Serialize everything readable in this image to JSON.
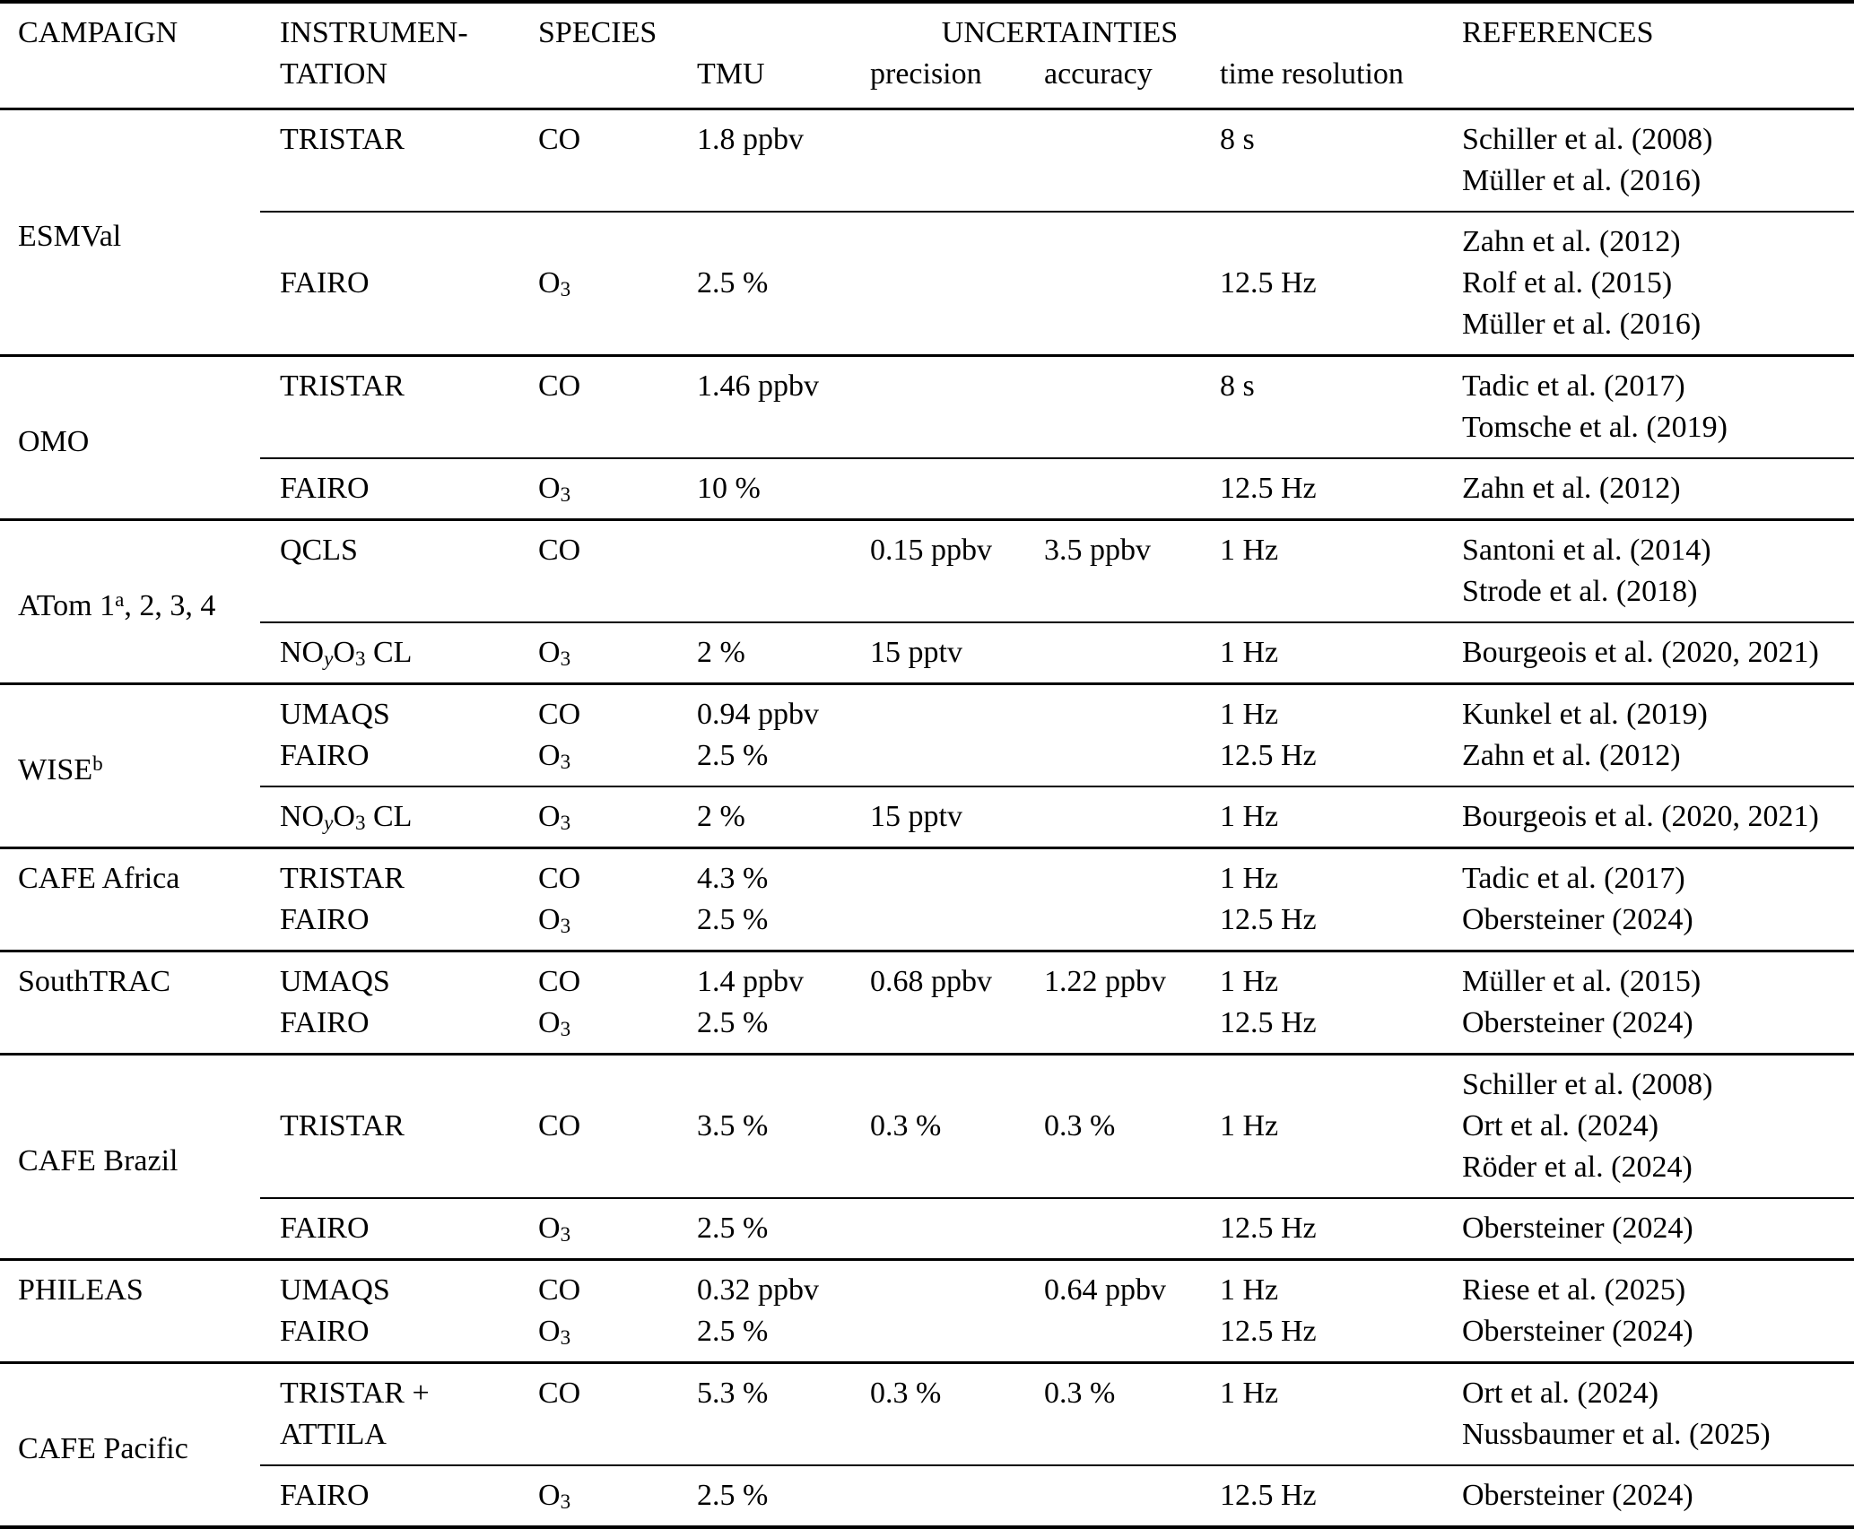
{
  "table": {
    "header": {
      "campaign": "CAMPAIGN",
      "instrumentation_line1": "INSTRUMEN-",
      "instrumentation_line2": "TATION",
      "species": "SPECIES",
      "uncertainties": "UNCERTAINTIES",
      "tmu": "TMU",
      "precision": "precision",
      "accuracy": "accuracy",
      "time_resolution": "time resolution",
      "references": "REFERENCES"
    },
    "groups": [
      {
        "campaign": "ESMVal",
        "rows": [
          [
            {
              "instrument": "TRISTAR",
              "species": "CO",
              "tmu": "1.8 ppbv",
              "time_resolution": "8 s",
              "reference": "Schiller et al. (2008)"
            },
            {
              "reference": "Müller et al. (2016)"
            }
          ],
          [
            {
              "reference": "Zahn et al. (2012)"
            },
            {
              "instrument": "FAIRO",
              "species": [
                {
                  "t": "O"
                },
                {
                  "sub": "3"
                }
              ],
              "tmu": "2.5 %",
              "time_resolution": "12.5 Hz",
              "reference": "Rolf et al. (2015)"
            },
            {
              "reference": "Müller et al. (2016)"
            }
          ]
        ]
      },
      {
        "campaign": "OMO",
        "rows": [
          [
            {
              "instrument": "TRISTAR",
              "species": "CO",
              "tmu": "1.46 ppbv",
              "time_resolution": "8 s",
              "reference": "Tadic et al. (2017)"
            },
            {
              "reference": "Tomsche et al. (2019)"
            }
          ],
          [
            {
              "instrument": "FAIRO",
              "species": [
                {
                  "t": "O"
                },
                {
                  "sub": "3"
                }
              ],
              "tmu": "10 %",
              "time_resolution": "12.5 Hz",
              "reference": "Zahn et al. (2012)"
            }
          ]
        ]
      },
      {
        "campaign": [
          {
            "t": "ATom 1"
          },
          {
            "sup": "a"
          },
          {
            "t": ", 2, 3, 4"
          }
        ],
        "rows": [
          [
            {
              "instrument": "QCLS",
              "species": "CO",
              "precision": "0.15 ppbv",
              "accuracy": "3.5 ppbv",
              "time_resolution": "1 Hz",
              "reference": "Santoni et al. (2014)"
            },
            {
              "reference": "Strode et al. (2018)"
            }
          ],
          [
            {
              "instrument": [
                {
                  "t": "NO"
                },
                {
                  "isub": "y"
                },
                {
                  "t": "O"
                },
                {
                  "sub": "3"
                },
                {
                  "t": " CL"
                }
              ],
              "species": [
                {
                  "t": "O"
                },
                {
                  "sub": "3"
                }
              ],
              "tmu": "2 %",
              "precision": "15 pptv",
              "time_resolution": "1 Hz",
              "reference": "Bourgeois et al. (2020, 2021)"
            }
          ]
        ]
      },
      {
        "campaign": [
          {
            "t": "WISE"
          },
          {
            "sup": "b"
          }
        ],
        "rows": [
          [
            {
              "instrument": "UMAQS",
              "species": "CO",
              "tmu": "0.94 ppbv",
              "time_resolution": "1 Hz",
              "reference": "Kunkel et al. (2019)"
            },
            {
              "instrument": "FAIRO",
              "species": [
                {
                  "t": "O"
                },
                {
                  "sub": "3"
                }
              ],
              "tmu": "2.5 %",
              "time_resolution": "12.5 Hz",
              "reference": "Zahn et al. (2012)"
            }
          ],
          [
            {
              "instrument": [
                {
                  "t": "NO"
                },
                {
                  "isub": "y"
                },
                {
                  "t": "O"
                },
                {
                  "sub": "3"
                },
                {
                  "t": " CL"
                }
              ],
              "species": [
                {
                  "t": "O"
                },
                {
                  "sub": "3"
                }
              ],
              "tmu": "2 %",
              "precision": "15 pptv",
              "time_resolution": "1 Hz",
              "reference": "Bourgeois et al. (2020, 2021)"
            }
          ]
        ]
      },
      {
        "campaign": "CAFE Africa",
        "rows": [
          [
            {
              "instrument": "TRISTAR",
              "species": "CO",
              "tmu": "4.3 %",
              "time_resolution": "1 Hz",
              "reference": "Tadic et al. (2017)"
            },
            {
              "instrument": "FAIRO",
              "species": [
                {
                  "t": "O"
                },
                {
                  "sub": "3"
                }
              ],
              "tmu": "2.5 %",
              "time_resolution": "12.5 Hz",
              "reference": "Obersteiner (2024)"
            }
          ]
        ]
      },
      {
        "campaign": "SouthTRAC",
        "rows": [
          [
            {
              "instrument": "UMAQS",
              "species": "CO",
              "tmu": "1.4 ppbv",
              "precision": "0.68 ppbv",
              "accuracy": "1.22 ppbv",
              "time_resolution": "1 Hz",
              "reference": "Müller et al. (2015)"
            },
            {
              "instrument": "FAIRO",
              "species": [
                {
                  "t": "O"
                },
                {
                  "sub": "3"
                }
              ],
              "tmu": "2.5 %",
              "time_resolution": "12.5 Hz",
              "reference": "Obersteiner (2024)"
            }
          ]
        ]
      },
      {
        "campaign": "CAFE Brazil",
        "rows": [
          [
            {
              "reference": "Schiller et al. (2008)"
            },
            {
              "instrument": "TRISTAR",
              "species": "CO",
              "tmu": "3.5 %",
              "precision": "0.3 %",
              "accuracy": "0.3 %",
              "time_resolution": "1 Hz",
              "reference": "Ort et al. (2024)"
            },
            {
              "reference": "Röder et al. (2024)"
            }
          ],
          [
            {
              "instrument": "FAIRO",
              "species": [
                {
                  "t": "O"
                },
                {
                  "sub": "3"
                }
              ],
              "tmu": "2.5 %",
              "time_resolution": "12.5 Hz",
              "reference": "Obersteiner (2024)"
            }
          ]
        ]
      },
      {
        "campaign": "PHILEAS",
        "rows": [
          [
            {
              "instrument": "UMAQS",
              "species": "CO",
              "tmu": "0.32 ppbv",
              "accuracy": "0.64 ppbv",
              "time_resolution": "1 Hz",
              "reference": "Riese et al. (2025)"
            },
            {
              "instrument": "FAIRO",
              "species": [
                {
                  "t": "O"
                },
                {
                  "sub": "3"
                }
              ],
              "tmu": "2.5 %",
              "time_resolution": "12.5 Hz",
              "reference": "Obersteiner (2024)"
            }
          ]
        ]
      },
      {
        "campaign": "CAFE Pacific",
        "rows": [
          [
            {
              "instrument": "TRISTAR +",
              "species": "CO",
              "tmu": "5.3 %",
              "precision": "0.3 %",
              "accuracy": "0.3 %",
              "time_resolution": "1 Hz",
              "reference": "Ort et al. (2024)"
            },
            {
              "instrument": "ATTILA",
              "reference": "Nussbaumer et al. (2025)"
            }
          ],
          [
            {
              "instrument": "FAIRO",
              "species": [
                {
                  "t": "O"
                },
                {
                  "sub": "3"
                }
              ],
              "tmu": "2.5 %",
              "time_resolution": "12.5 Hz",
              "reference": "Obersteiner (2024)"
            }
          ]
        ]
      }
    ]
  }
}
